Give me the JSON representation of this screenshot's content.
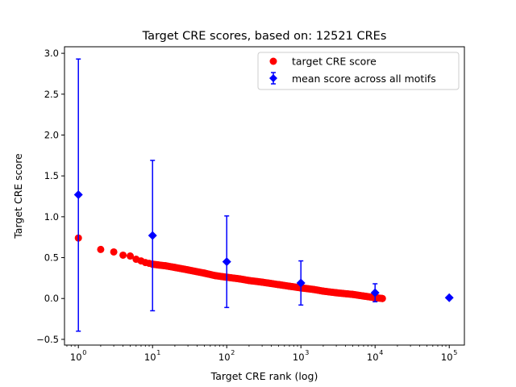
{
  "chart_data": {
    "type": "scatter",
    "title": "Target CRE scores, based on: 12521 CREs",
    "xlabel": "Target CRE rank (log)",
    "ylabel": "Target CRE score",
    "xscale": "log",
    "xlim": [
      0.65,
      160000
    ],
    "ylim": [
      -0.57,
      3.08
    ],
    "grid": false,
    "legend_position": "top-right",
    "x_ticks": [
      {
        "base": "10",
        "exp": "0",
        "value": 1
      },
      {
        "base": "10",
        "exp": "1",
        "value": 10
      },
      {
        "base": "10",
        "exp": "2",
        "value": 100
      },
      {
        "base": "10",
        "exp": "3",
        "value": 1000
      },
      {
        "base": "10",
        "exp": "4",
        "value": 10000
      },
      {
        "base": "10",
        "exp": "5",
        "value": 100000
      }
    ],
    "y_ticks": [
      "−0.5",
      "0.0",
      "0.5",
      "1.0",
      "1.5",
      "2.0",
      "2.5",
      "3.0"
    ],
    "series": [
      {
        "name": "target CRE score",
        "kind": "points",
        "color": "#ff0000",
        "marker": "circle",
        "x": [
          1,
          2,
          3,
          4,
          5,
          6,
          7,
          8,
          9,
          10,
          12,
          15,
          20,
          30,
          50,
          70,
          100,
          150,
          200,
          300,
          500,
          700,
          1000,
          1500,
          2000,
          3000,
          5000,
          7000,
          10000,
          12521
        ],
        "y": [
          0.74,
          0.6,
          0.57,
          0.53,
          0.52,
          0.48,
          0.46,
          0.44,
          0.43,
          0.42,
          0.41,
          0.4,
          0.38,
          0.35,
          0.31,
          0.28,
          0.26,
          0.24,
          0.22,
          0.2,
          0.17,
          0.15,
          0.13,
          0.11,
          0.09,
          0.07,
          0.05,
          0.03,
          0.01,
          0.0
        ]
      },
      {
        "name": "mean score across all motifs",
        "kind": "errorbar",
        "color": "#0000ff",
        "marker": "diamond",
        "x": [
          1,
          10,
          100,
          1000,
          10000,
          100000
        ],
        "y": [
          1.27,
          0.77,
          0.45,
          0.19,
          0.07,
          0.01
        ],
        "err_low": [
          -0.4,
          -0.15,
          -0.11,
          -0.08,
          -0.04,
          null
        ],
        "err_high": [
          2.93,
          1.69,
          1.01,
          0.46,
          0.18,
          null
        ]
      }
    ]
  }
}
